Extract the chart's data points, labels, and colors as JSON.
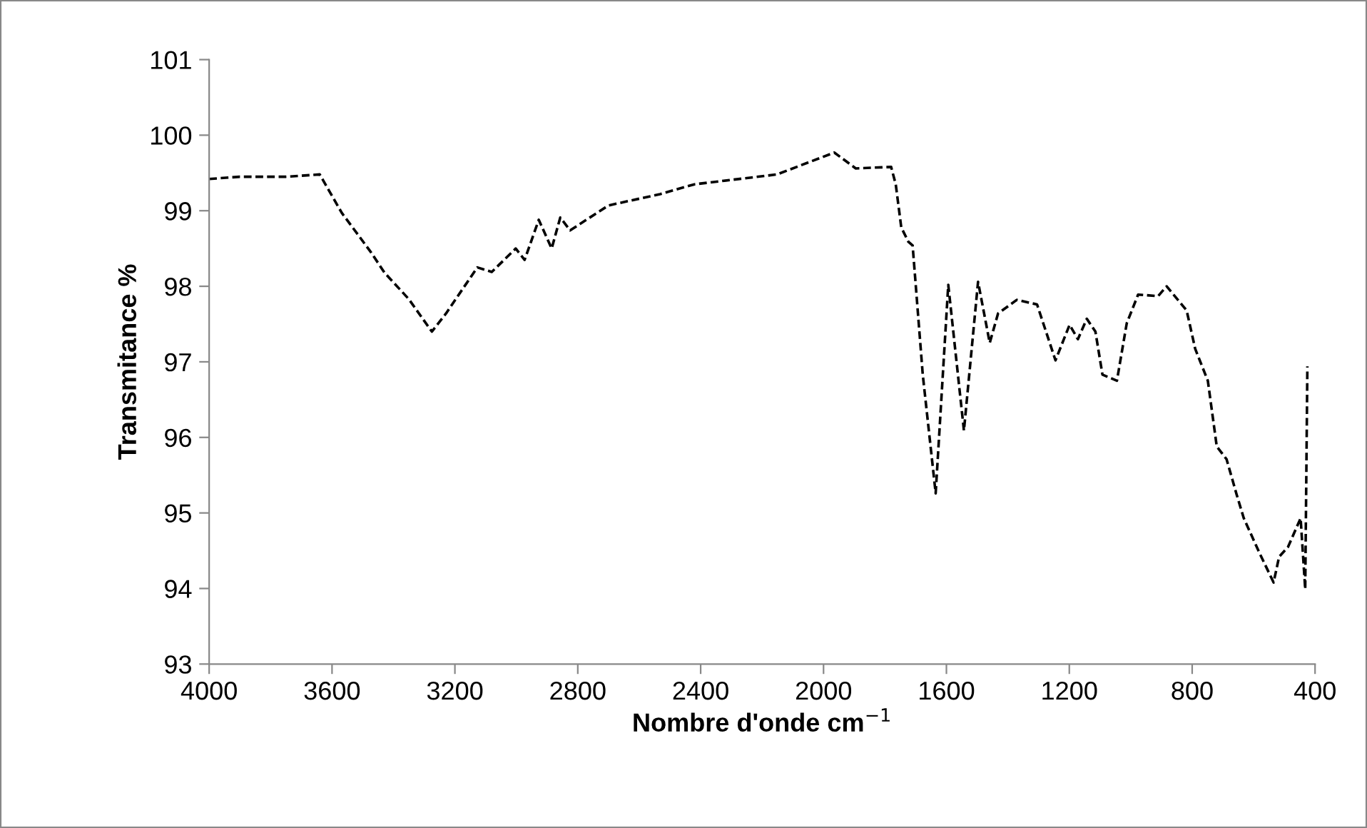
{
  "chart_data": {
    "type": "line",
    "xlabel": "Nombre d'onde cm$^{−1}$",
    "ylabel": "Transmitance %",
    "xlim": [
      4000,
      400
    ],
    "ylim": [
      93,
      101
    ],
    "xticks": [
      4000,
      3600,
      3200,
      2800,
      2400,
      2000,
      1600,
      1200,
      800,
      400
    ],
    "yticks": [
      93,
      94,
      95,
      96,
      97,
      98,
      99,
      100,
      101
    ],
    "grid": false,
    "legend": false,
    "line_style": "dashed",
    "series": [
      {
        "color": "#000000",
        "x": [
          4000,
          3900,
          3750,
          3640,
          3568,
          3475,
          3429,
          3350,
          3275,
          3229,
          3127,
          3080,
          3002,
          2973,
          2927,
          2885,
          2857,
          2825,
          2700,
          2532,
          2420,
          2152,
          1965,
          1895,
          1780,
          1765,
          1747,
          1724,
          1710,
          1677,
          1635,
          1594,
          1543,
          1497,
          1459,
          1432,
          1371,
          1305,
          1245,
          1199,
          1172,
          1143,
          1115,
          1092,
          1045,
          1013,
          976,
          911,
          883,
          818,
          790,
          749,
          720,
          688,
          655,
          632,
          582,
          535,
          517,
          488,
          447,
          432,
          425
        ],
        "values": [
          99.42,
          99.45,
          99.45,
          99.48,
          98.97,
          98.46,
          98.18,
          97.83,
          97.4,
          97.64,
          98.25,
          98.19,
          98.5,
          98.35,
          98.88,
          98.5,
          98.91,
          98.74,
          99.07,
          99.22,
          99.35,
          99.48,
          99.77,
          99.56,
          99.58,
          99.35,
          98.78,
          98.59,
          98.54,
          96.83,
          95.26,
          98.02,
          96.09,
          98.06,
          97.25,
          97.64,
          97.82,
          97.76,
          97.02,
          97.49,
          97.3,
          97.57,
          97.4,
          96.83,
          96.75,
          97.51,
          97.89,
          97.87,
          98.0,
          97.68,
          97.17,
          96.75,
          95.88,
          95.71,
          95.24,
          94.93,
          94.48,
          94.08,
          94.42,
          94.55,
          94.93,
          93.99,
          96.94
        ]
      }
    ]
  }
}
